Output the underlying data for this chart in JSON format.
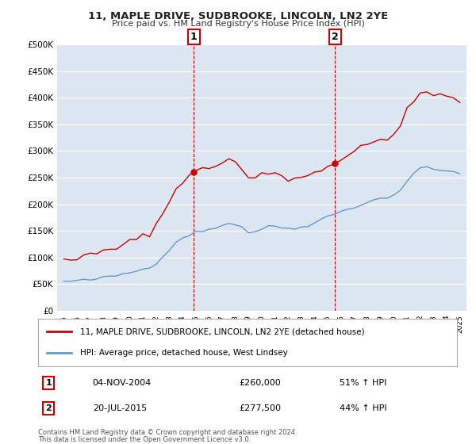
{
  "title": "11, MAPLE DRIVE, SUDBROOKE, LINCOLN, LN2 2YE",
  "subtitle": "Price paid vs. HM Land Registry's House Price Index (HPI)",
  "background_color": "#ffffff",
  "plot_bg_color": "#dce6f1",
  "grid_color": "#ffffff",
  "sale1_label": "04-NOV-2004",
  "sale1_price": 260000,
  "sale1_pct": "51%",
  "sale1_x": 2004.838,
  "sale2_label": "20-JUL-2015",
  "sale2_price": 277500,
  "sale2_pct": "44%",
  "sale2_x": 2015.554,
  "legend_house": "11, MAPLE DRIVE, SUDBROOKE, LINCOLN, LN2 2YE (detached house)",
  "legend_hpi": "HPI: Average price, detached house, West Lindsey",
  "footnote1": "Contains HM Land Registry data © Crown copyright and database right 2024.",
  "footnote2": "This data is licensed under the Open Government Licence v3.0.",
  "house_color": "#cc0000",
  "hpi_color": "#6699cc",
  "vline_color": "#cc0000",
  "ylim_min": 0,
  "ylim_max": 500000,
  "yticks": [
    0,
    50000,
    100000,
    150000,
    200000,
    250000,
    300000,
    350000,
    400000,
    450000,
    500000
  ],
  "hpi_values": [
    55000,
    55500,
    56000,
    57000,
    58000,
    60000,
    62000,
    64000,
    66000,
    69000,
    72000,
    75000,
    78000,
    83000,
    90000,
    102000,
    115000,
    128000,
    138000,
    143000,
    147000,
    149000,
    153000,
    157000,
    161000,
    164000,
    163000,
    157000,
    147000,
    149000,
    154000,
    157000,
    159000,
    157000,
    154000,
    155000,
    157000,
    161000,
    167000,
    172000,
    177000,
    181000,
    187000,
    191000,
    195000,
    199000,
    204000,
    207000,
    211000,
    214000,
    217000,
    227000,
    244000,
    257000,
    267000,
    269000,
    267000,
    264000,
    262000,
    260000,
    258000
  ],
  "years_hpi": [
    1995.0,
    1995.5,
    1996.0,
    1996.5,
    1997.0,
    1997.5,
    1998.0,
    1998.5,
    1999.0,
    1999.5,
    2000.0,
    2000.5,
    2001.0,
    2001.5,
    2002.0,
    2002.5,
    2003.0,
    2003.5,
    2004.0,
    2004.5,
    2005.0,
    2005.5,
    2006.0,
    2006.5,
    2007.0,
    2007.5,
    2008.0,
    2008.5,
    2009.0,
    2009.5,
    2010.0,
    2010.5,
    2011.0,
    2011.5,
    2012.0,
    2012.5,
    2013.0,
    2013.5,
    2014.0,
    2014.5,
    2015.0,
    2015.5,
    2016.0,
    2016.5,
    2017.0,
    2017.5,
    2018.0,
    2018.5,
    2019.0,
    2019.5,
    2020.0,
    2020.5,
    2021.0,
    2021.5,
    2022.0,
    2022.5,
    2023.0,
    2023.5,
    2024.0,
    2024.5,
    2025.0
  ]
}
